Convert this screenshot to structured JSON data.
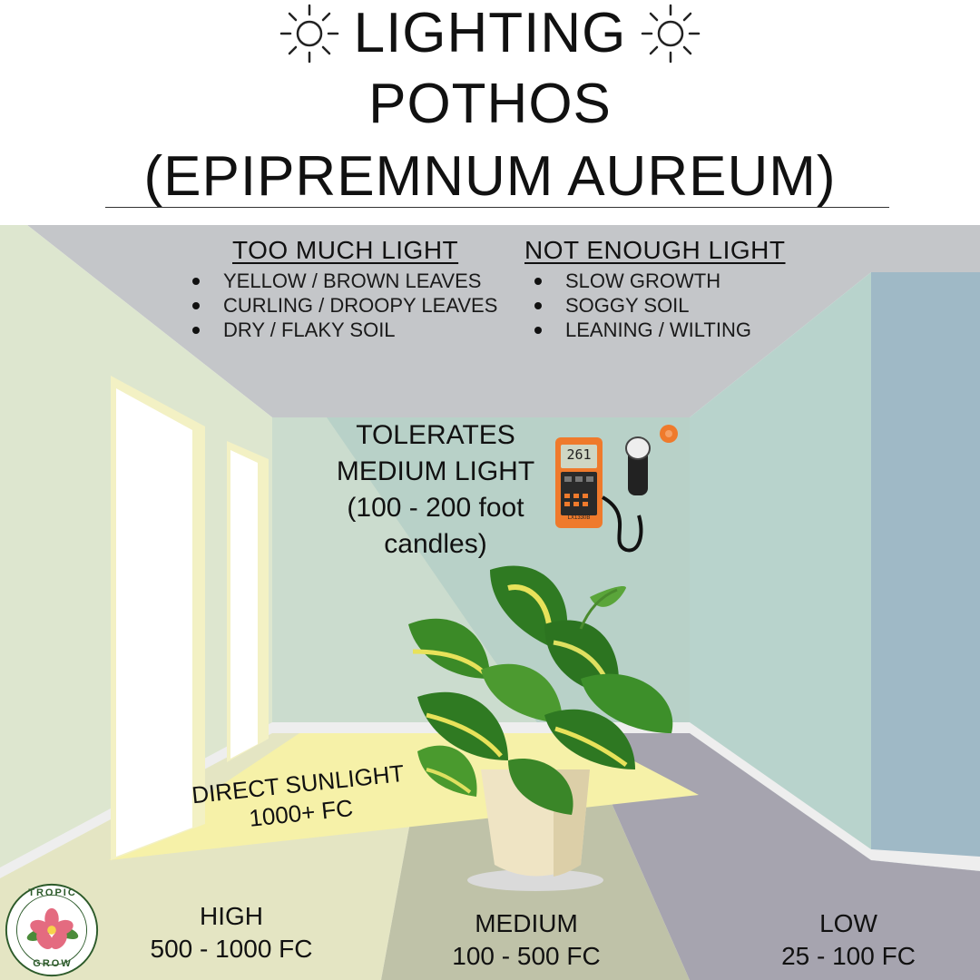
{
  "title": {
    "line1": "LIGHTING",
    "line2": "POTHOS",
    "line3": "(EPIPREMNUM AUREUM)"
  },
  "too_much": {
    "heading": "TOO MUCH LIGHT",
    "items": [
      "YELLOW / BROWN LEAVES",
      "CURLING / DROOPY LEAVES",
      "DRY / FLAKY SOIL"
    ]
  },
  "not_enough": {
    "heading": "NOT ENOUGH LIGHT",
    "items": [
      "SLOW GROWTH",
      "SOGGY SOIL",
      "LEANING / WILTING"
    ]
  },
  "tolerates": {
    "line1": "TOLERATES",
    "line2": "MEDIUM LIGHT",
    "line3": "(100 - 200 foot",
    "line4": "candles)"
  },
  "direct": {
    "line1": "DIRECT SUNLIGHT",
    "line2": "1000+ FC"
  },
  "zones": [
    {
      "name": "HIGH",
      "range": "500 - 1000 FC"
    },
    {
      "name": "MEDIUM",
      "range": "100 - 500 FC"
    },
    {
      "name": "LOW",
      "range": "25 - 100 FC"
    }
  ],
  "meter": {
    "reading": "261",
    "model": "LX1330B"
  },
  "logo": {
    "top": "TROPIC",
    "bottom": "GROW"
  },
  "colors": {
    "ceiling": "#c4c6c9",
    "left_wall": "#dde6cf",
    "back_wall": "#b8d1c8",
    "right_wall": "#b8d3cc",
    "right_panel": "#9fb9c6",
    "high_floor": "#e4e5c3",
    "medium_floor": "#bfc2a8",
    "low_floor": "#a6a4af",
    "sun_patch": "#f6f1a8"
  }
}
